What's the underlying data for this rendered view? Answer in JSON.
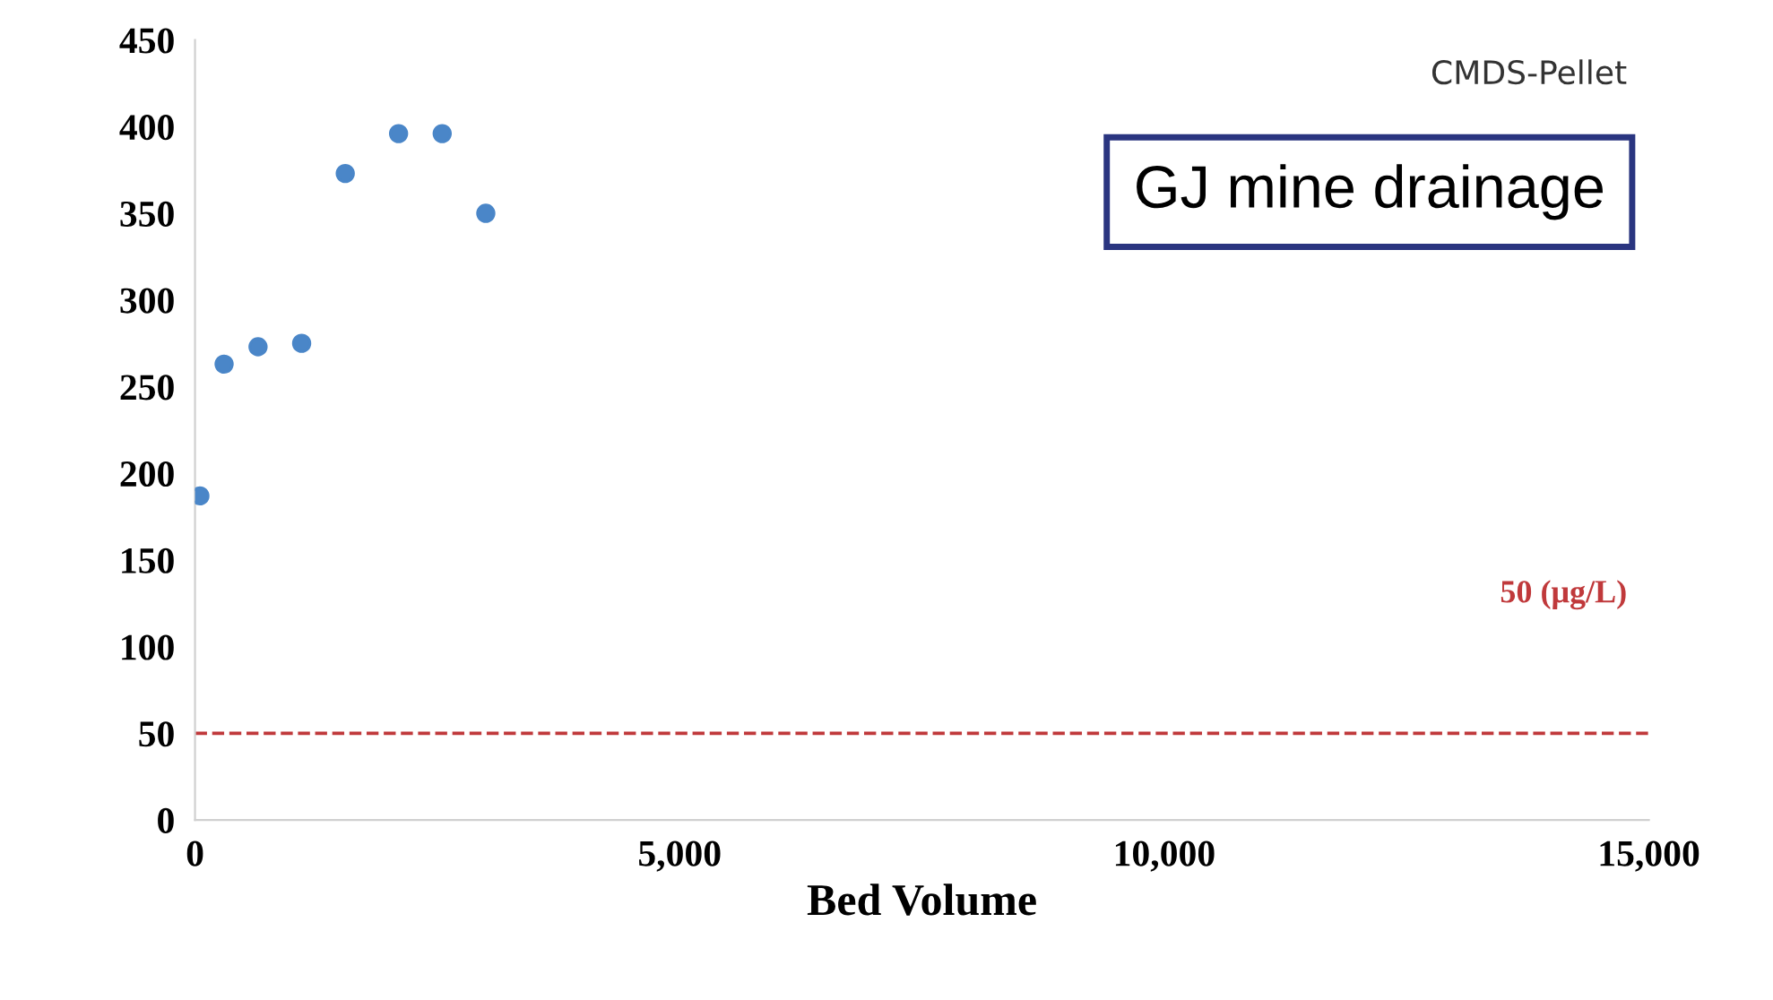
{
  "chart_data": {
    "type": "scatter",
    "xlabel": "Bed Volume",
    "x": [
      50,
      300,
      650,
      1100,
      1550,
      2100,
      2550,
      3000
    ],
    "series": [
      {
        "color": "#4a86c8",
        "values": [
          187,
          263,
          273,
          275,
          373,
          396,
          396,
          350
        ]
      }
    ],
    "xlim": [
      0,
      15000
    ],
    "ylim": [
      0,
      450
    ],
    "xticks": [
      {
        "value": 0,
        "label": "0"
      },
      {
        "value": 5000,
        "label": "5,000"
      },
      {
        "value": 10000,
        "label": "10,000"
      },
      {
        "value": 15000,
        "label": "15,000"
      }
    ],
    "yticks": [
      0,
      50,
      100,
      150,
      200,
      250,
      300,
      350,
      400,
      450
    ],
    "ref_lines": [
      {
        "axis": "y",
        "value": 50,
        "label": "50 (μg/L)",
        "color": "#c0393b",
        "line_style": "dashed"
      }
    ],
    "annotations": [
      "CMDS-Pellet",
      "GJ mine drainage"
    ],
    "marker": "circle",
    "grid": false,
    "legend": false
  }
}
